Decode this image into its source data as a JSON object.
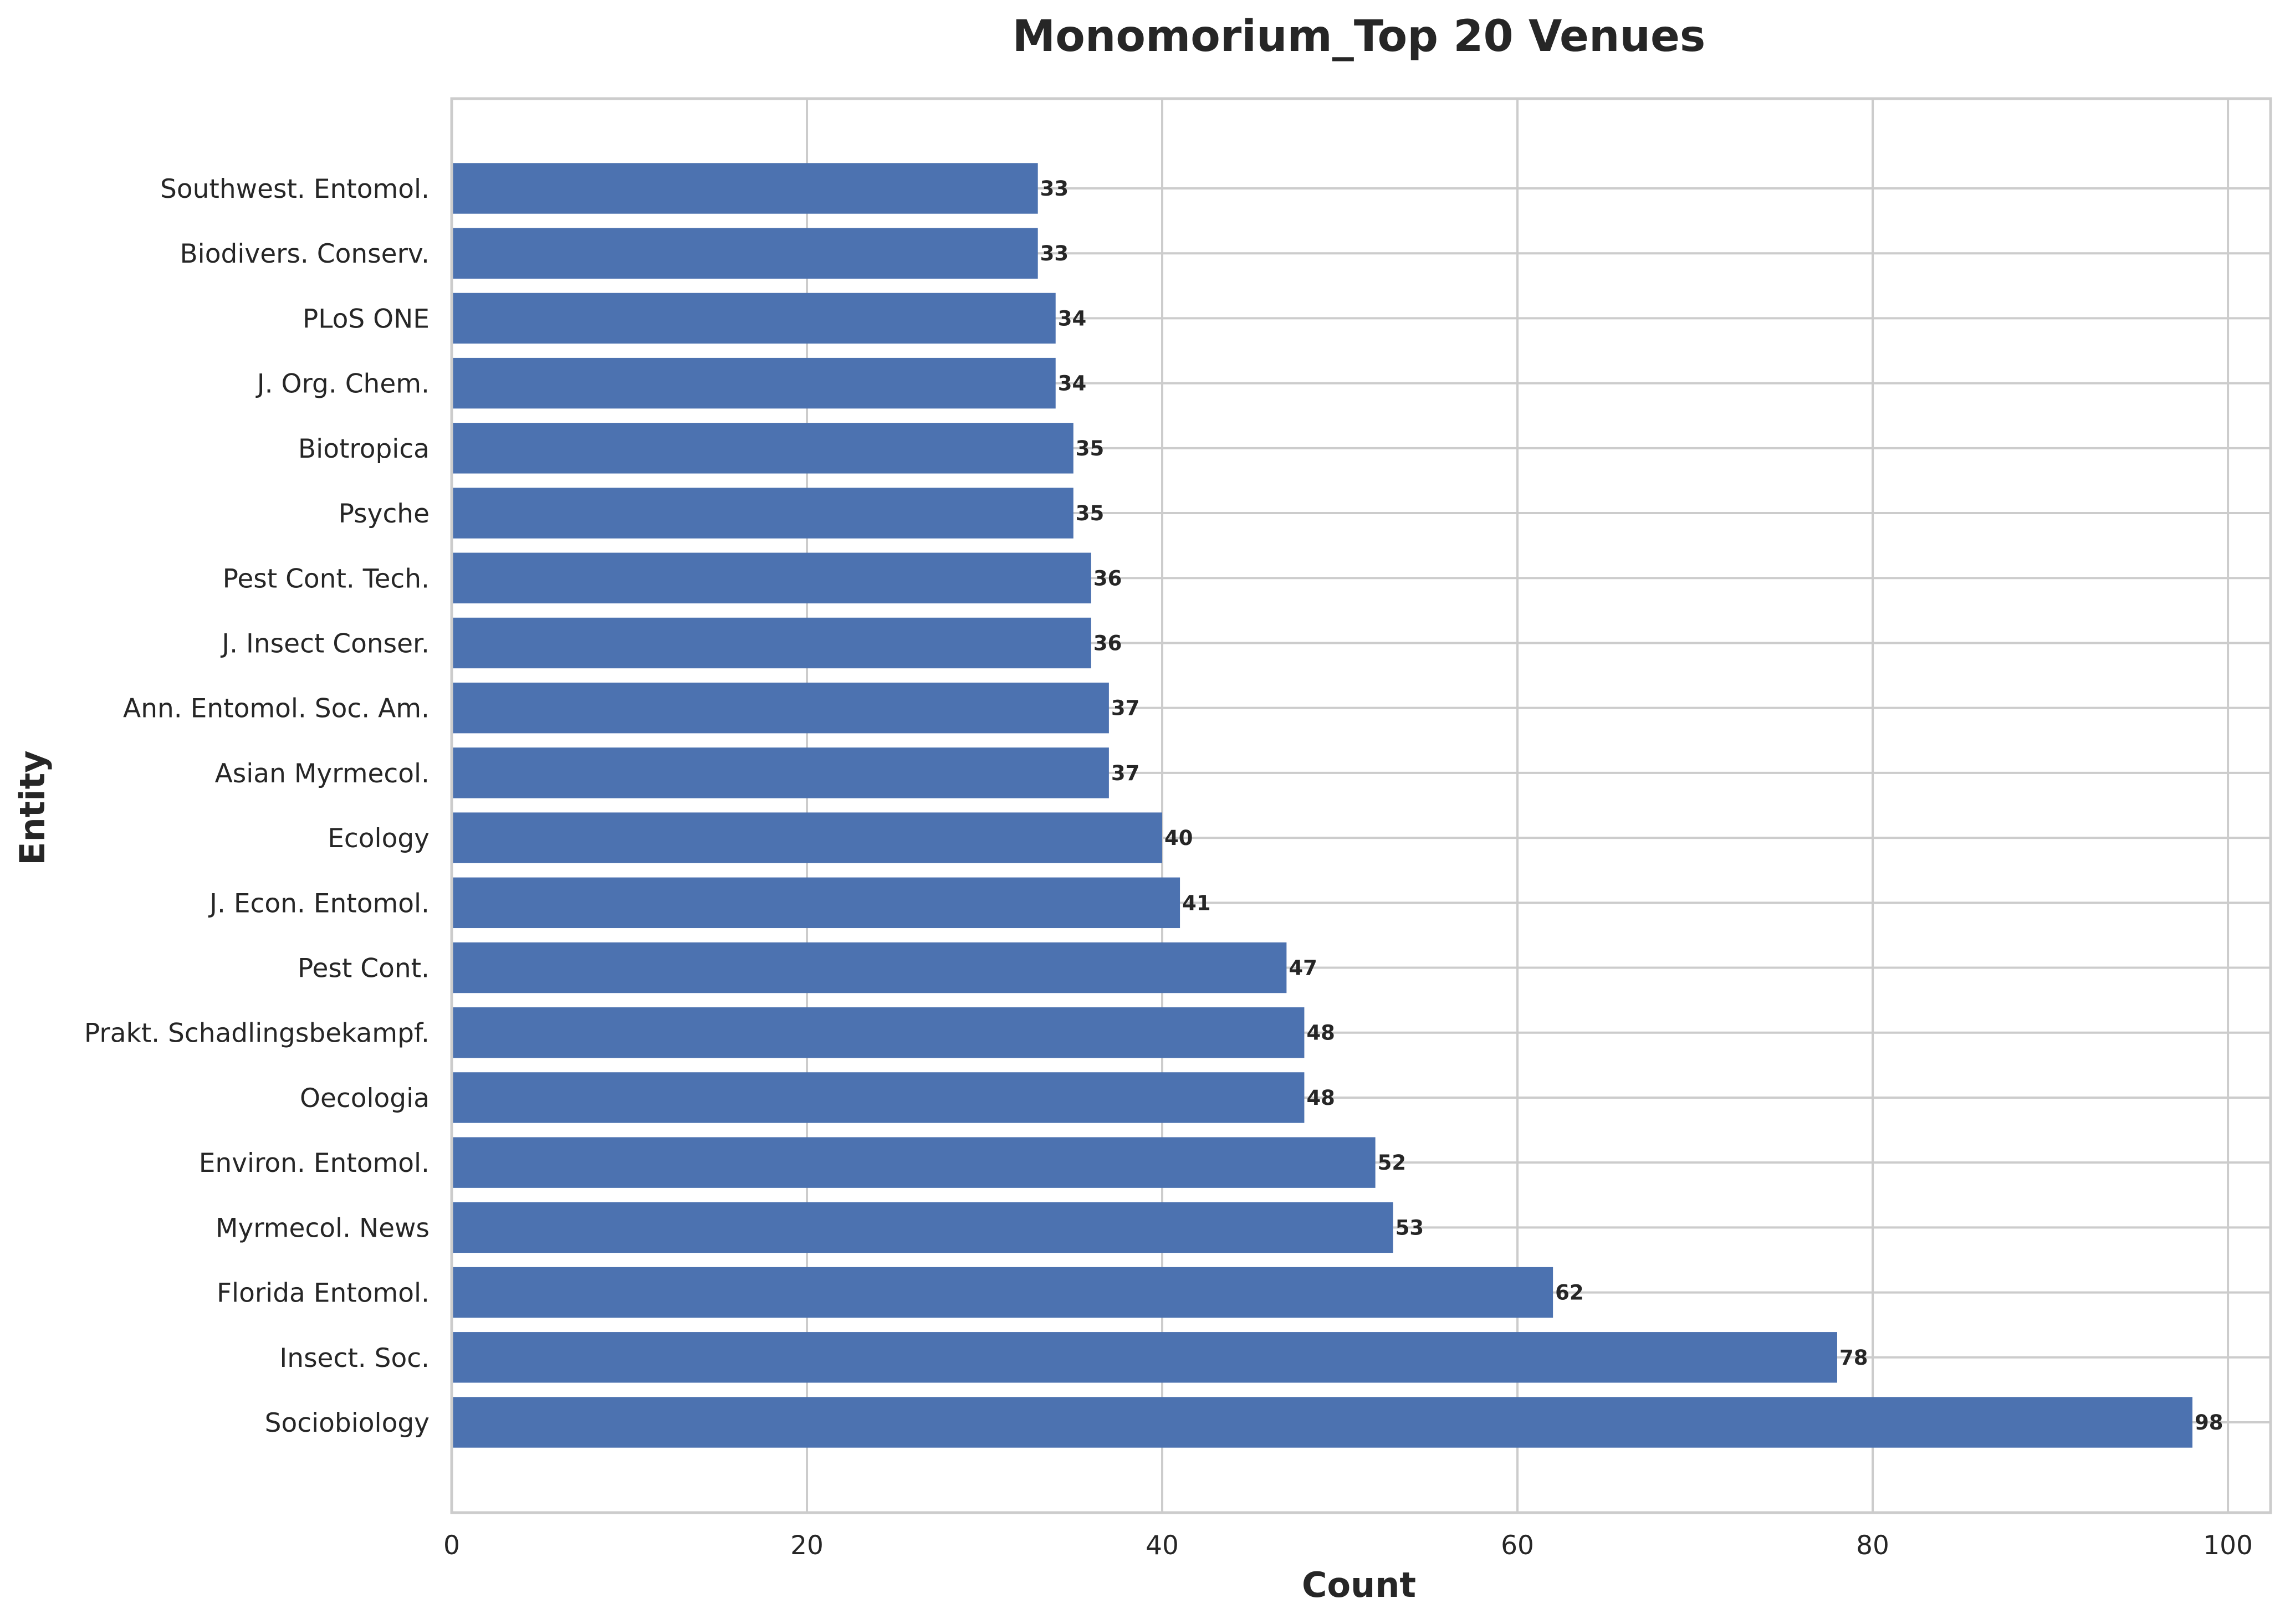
{
  "chart_data": {
    "type": "bar",
    "orientation": "horizontal",
    "title": "Monomorium_Top 20 Venues",
    "xlabel": "Count",
    "ylabel": "Entity",
    "xlim": [
      0,
      102.4
    ],
    "xticks": [
      0,
      20,
      40,
      60,
      80,
      100
    ],
    "grid": true,
    "bar_color": "#4c72b0",
    "categories": [
      "Sociobiology",
      "Insect. Soc.",
      "Florida Entomol.",
      "Myrmecol. News",
      "Environ. Entomol.",
      "Oecologia",
      "Prakt. Schadlingsbekampf.",
      "Pest Cont.",
      "J. Econ. Entomol.",
      "Ecology",
      "Asian Myrmecol.",
      "Ann. Entomol. Soc. Am.",
      "J. Insect Conser.",
      "Pest Cont. Tech.",
      "Psyche",
      "Biotropica",
      "J. Org. Chem.",
      "PLoS ONE",
      "Biodivers. Conserv.",
      "Southwest. Entomol."
    ],
    "values": [
      98,
      78,
      62,
      53,
      52,
      48,
      48,
      47,
      41,
      40,
      37,
      37,
      36,
      36,
      35,
      35,
      34,
      34,
      33,
      33
    ]
  }
}
